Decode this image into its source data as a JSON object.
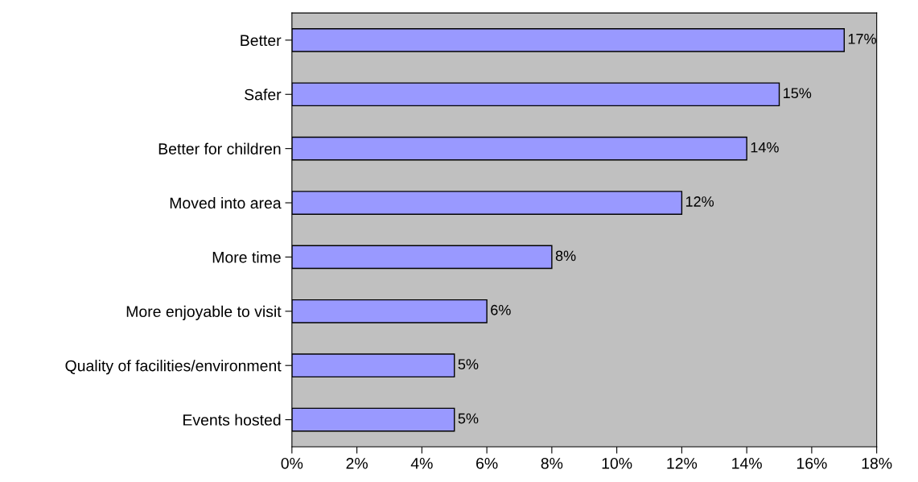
{
  "chart_data": {
    "type": "bar",
    "orientation": "horizontal",
    "categories": [
      "Better",
      "Safer",
      "Better for children",
      "Moved into area",
      "More time",
      "More enjoyable to visit",
      "Quality of facilities/environment",
      "Events hosted"
    ],
    "values": [
      17,
      15,
      14,
      12,
      8,
      6,
      5,
      5
    ],
    "value_labels": [
      "17%",
      "15%",
      "14%",
      "12%",
      "8%",
      "6%",
      "5%",
      "5%"
    ],
    "color": "#9999ff",
    "xlim": [
      0,
      18
    ],
    "xticks": [
      {
        "value": 0,
        "label": "0%"
      },
      {
        "value": 2,
        "label": "2%"
      },
      {
        "value": 4,
        "label": "4%"
      },
      {
        "value": 6,
        "label": "6%"
      },
      {
        "value": 8,
        "label": "8%"
      },
      {
        "value": 10,
        "label": "10%"
      },
      {
        "value": 12,
        "label": "12%"
      },
      {
        "value": 14,
        "label": "14%"
      },
      {
        "value": 16,
        "label": "16%"
      },
      {
        "value": 18,
        "label": "18%"
      }
    ],
    "grid": false
  }
}
